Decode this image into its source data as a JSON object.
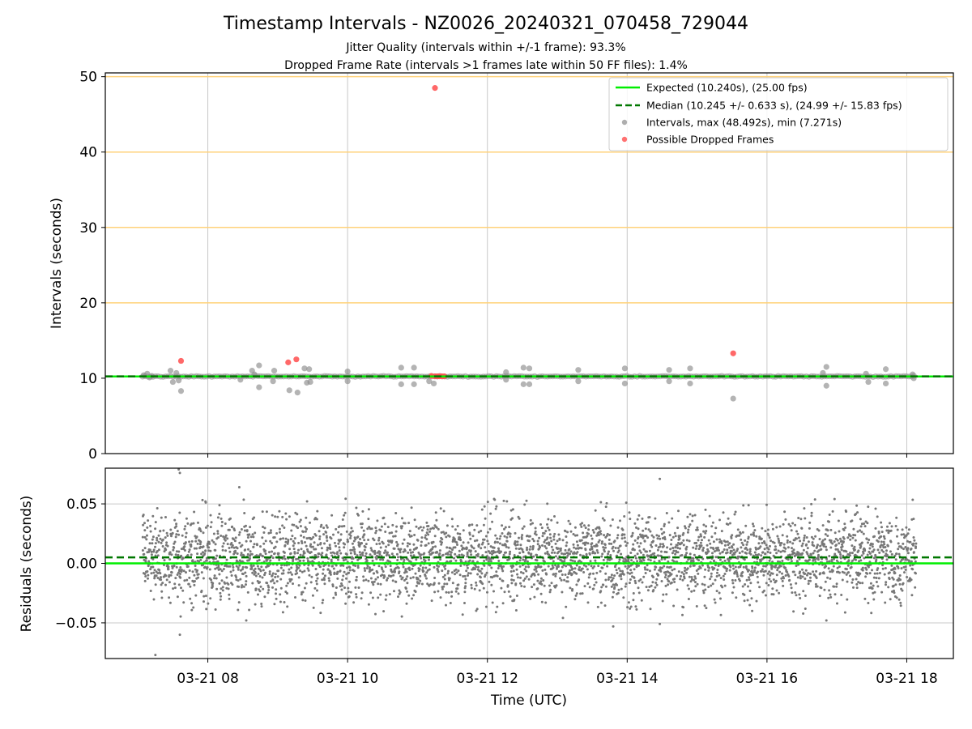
{
  "figure": {
    "title": "Timestamp Intervals - NZ0026_20240321_070458_729044",
    "subtitle_1": "Jitter Quality (intervals within +/-1 frame): 93.3%",
    "subtitle_2": "Dropped Frame Rate (intervals >1 frames late within 50 FF files): 1.4%"
  },
  "colors": {
    "expected": "#00ee00",
    "median": "#007700",
    "intervals": "#8c8c8c",
    "dropped": "#ff4d4d",
    "hline": "#ffd27a",
    "grid": "#c8c8c8",
    "residual_points": "#777777"
  },
  "chart_data": [
    {
      "type": "scatter",
      "ylabel": "Intervals (seconds)",
      "xlabel": "",
      "xlim": [
        "2024-03-21 06:32",
        "2024-03-21 18:40"
      ],
      "ylim": [
        0,
        50.5
      ],
      "yticks": [
        0,
        10,
        20,
        30,
        40,
        50
      ],
      "ytick_labels": [
        "0",
        "10",
        "20",
        "30",
        "40",
        "50"
      ],
      "grid": "x",
      "reference_lines": [
        {
          "name": "Expected (10.240s), (25.00 fps)",
          "y": 10.24,
          "style": "solid",
          "color": "#00ee00"
        },
        {
          "name": "Median (10.245 +/- 0.633 s), (24.99 +/- 15.83 fps)",
          "y": 10.245,
          "style": "dashed",
          "color": "#007700"
        }
      ],
      "horizontal_lines": [
        20,
        30,
        40,
        50
      ],
      "legend_position": "top-right",
      "series": [
        {
          "name": "Intervals, max (48.492s), min (7.271s)",
          "color": "#8c8c8c",
          "points": [
            {
              "x": "2024-03-21 07:05",
              "y": 10.4
            },
            {
              "x": "2024-03-21 07:08",
              "y": 10.6
            },
            {
              "x": "2024-03-21 07:10",
              "y": 10.1
            },
            {
              "x": "2024-03-21 07:12",
              "y": 10.3
            },
            {
              "x": "2024-03-21 07:28",
              "y": 11.0
            },
            {
              "x": "2024-03-21 07:30",
              "y": 9.5
            },
            {
              "x": "2024-03-21 07:33",
              "y": 10.7
            },
            {
              "x": "2024-03-21 07:35",
              "y": 9.7
            },
            {
              "x": "2024-03-21 07:37",
              "y": 8.3
            },
            {
              "x": "2024-03-21 08:28",
              "y": 9.8
            },
            {
              "x": "2024-03-21 08:38",
              "y": 11.0
            },
            {
              "x": "2024-03-21 08:40",
              "y": 10.5
            },
            {
              "x": "2024-03-21 08:44",
              "y": 11.7
            },
            {
              "x": "2024-03-21 08:44",
              "y": 8.8
            },
            {
              "x": "2024-03-21 08:56",
              "y": 9.6
            },
            {
              "x": "2024-03-21 08:57",
              "y": 11.0
            },
            {
              "x": "2024-03-21 09:10",
              "y": 8.4
            },
            {
              "x": "2024-03-21 09:17",
              "y": 8.1
            },
            {
              "x": "2024-03-21 09:23",
              "y": 11.3
            },
            {
              "x": "2024-03-21 09:25",
              "y": 9.4
            },
            {
              "x": "2024-03-21 09:27",
              "y": 11.2
            },
            {
              "x": "2024-03-21 09:28",
              "y": 9.5
            },
            {
              "x": "2024-03-21 10:00",
              "y": 9.6
            },
            {
              "x": "2024-03-21 10:00",
              "y": 10.9
            },
            {
              "x": "2024-03-21 10:46",
              "y": 11.4
            },
            {
              "x": "2024-03-21 10:46",
              "y": 9.2
            },
            {
              "x": "2024-03-21 10:57",
              "y": 11.4
            },
            {
              "x": "2024-03-21 10:57",
              "y": 9.2
            },
            {
              "x": "2024-03-21 11:10",
              "y": 9.6
            },
            {
              "x": "2024-03-21 11:14",
              "y": 9.3
            },
            {
              "x": "2024-03-21 12:16",
              "y": 10.8
            },
            {
              "x": "2024-03-21 12:16",
              "y": 9.8
            },
            {
              "x": "2024-03-21 12:31",
              "y": 11.4
            },
            {
              "x": "2024-03-21 12:31",
              "y": 9.2
            },
            {
              "x": "2024-03-21 12:36",
              "y": 11.3
            },
            {
              "x": "2024-03-21 12:36",
              "y": 9.2
            },
            {
              "x": "2024-03-21 13:18",
              "y": 11.1
            },
            {
              "x": "2024-03-21 13:18",
              "y": 9.6
            },
            {
              "x": "2024-03-21 13:58",
              "y": 11.3
            },
            {
              "x": "2024-03-21 13:58",
              "y": 9.3
            },
            {
              "x": "2024-03-21 14:36",
              "y": 11.1
            },
            {
              "x": "2024-03-21 14:36",
              "y": 9.6
            },
            {
              "x": "2024-03-21 14:54",
              "y": 11.3
            },
            {
              "x": "2024-03-21 14:54",
              "y": 9.3
            },
            {
              "x": "2024-03-21 15:31",
              "y": 7.3
            },
            {
              "x": "2024-03-21 16:48",
              "y": 10.7
            },
            {
              "x": "2024-03-21 16:51",
              "y": 11.5
            },
            {
              "x": "2024-03-21 16:51",
              "y": 9.0
            },
            {
              "x": "2024-03-21 17:25",
              "y": 10.6
            },
            {
              "x": "2024-03-21 17:27",
              "y": 9.5
            },
            {
              "x": "2024-03-21 17:42",
              "y": 11.2
            },
            {
              "x": "2024-03-21 17:42",
              "y": 9.3
            },
            {
              "x": "2024-03-21 18:05",
              "y": 10.5
            },
            {
              "x": "2024-03-21 18:06",
              "y": 10.0
            }
          ]
        },
        {
          "name": "Possible Dropped Frames",
          "color": "#ff4d4d",
          "points": [
            {
              "x": "2024-03-21 07:37",
              "y": 12.3
            },
            {
              "x": "2024-03-21 09:09",
              "y": 12.1
            },
            {
              "x": "2024-03-21 09:16",
              "y": 12.5
            },
            {
              "x": "2024-03-21 11:15",
              "y": 48.5
            },
            {
              "x": "2024-03-21 11:12",
              "y": 10.3
            },
            {
              "x": "2024-03-21 11:15",
              "y": 10.25
            },
            {
              "x": "2024-03-21 11:17",
              "y": 10.25
            },
            {
              "x": "2024-03-21 11:19",
              "y": 10.25
            },
            {
              "x": "2024-03-21 11:21",
              "y": 10.25
            },
            {
              "x": "2024-03-21 11:23",
              "y": 10.25
            },
            {
              "x": "2024-03-21 15:31",
              "y": 13.3
            }
          ]
        }
      ]
    },
    {
      "type": "scatter",
      "ylabel": "Residuals (seconds)",
      "xlabel": "Time (UTC)",
      "xlim": [
        "2024-03-21 06:32",
        "2024-03-21 18:40"
      ],
      "xticks": [
        "2024-03-21 08:00",
        "2024-03-21 10:00",
        "2024-03-21 12:00",
        "2024-03-21 14:00",
        "2024-03-21 16:00",
        "2024-03-21 18:00"
      ],
      "xtick_labels": [
        "03-21 08",
        "03-21 10",
        "03-21 12",
        "03-21 14",
        "03-21 16",
        "03-21 18"
      ],
      "ylim": [
        -0.08,
        0.08
      ],
      "yticks": [
        -0.05,
        0.0,
        0.05
      ],
      "ytick_labels": [
        "−0.05",
        "0.00",
        "0.05"
      ],
      "grid": "both",
      "reference_lines": [
        {
          "y": 0.0,
          "style": "solid",
          "color": "#00ee00"
        },
        {
          "y": 0.005,
          "style": "dashed",
          "color": "#007700"
        }
      ],
      "residuals_summary": {
        "x_start": "2024-03-21 07:04",
        "x_end": "2024-03-21 18:08",
        "point_count": 3900,
        "center": 0.005,
        "spread": 0.025,
        "min": -0.077,
        "max": 0.079
      },
      "notable_points": [
        {
          "x": "2024-03-21 07:15",
          "y": -0.077
        },
        {
          "x": "2024-03-21 07:35",
          "y": 0.079
        },
        {
          "x": "2024-03-21 07:36",
          "y": 0.076
        },
        {
          "x": "2024-03-21 07:36",
          "y": -0.06
        },
        {
          "x": "2024-03-21 08:33",
          "y": -0.048
        },
        {
          "x": "2024-03-21 08:27",
          "y": 0.064
        },
        {
          "x": "2024-03-21 14:28",
          "y": 0.071
        },
        {
          "x": "2024-03-21 14:28",
          "y": -0.051
        },
        {
          "x": "2024-03-21 13:48",
          "y": -0.053
        },
        {
          "x": "2024-03-21 16:51",
          "y": -0.048
        },
        {
          "x": "2024-03-21 07:58",
          "y": 0.052
        }
      ]
    }
  ]
}
